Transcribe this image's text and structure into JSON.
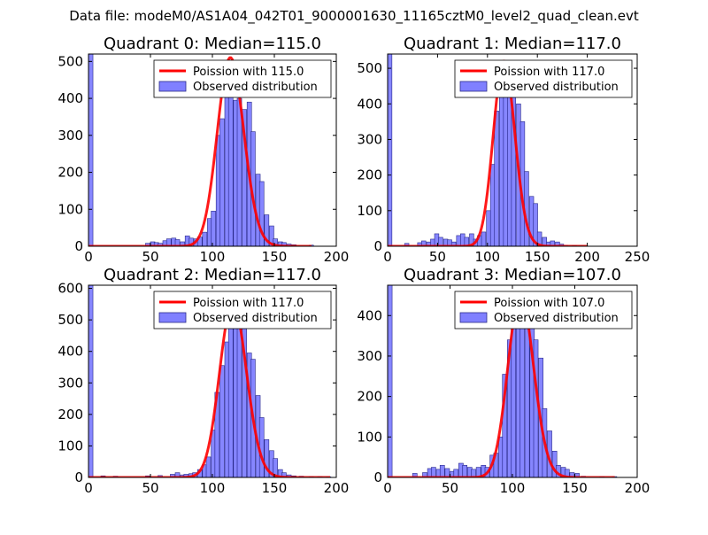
{
  "suptitle": "Data file: modeM0/AS1A04_042T01_9000001630_11165cztM0_level2_quad_clean.evt",
  "colors": {
    "hist_face": "#8080ff",
    "hist_edge": "#2a2a8a",
    "poisson_line": "#ff0000"
  },
  "chart_data": [
    {
      "type": "histogram+line",
      "title": "Quadrant 0: Median=115.0",
      "median": 115.0,
      "xlim": [
        0,
        200
      ],
      "ylim": [
        0,
        520
      ],
      "xticks": [
        0,
        50,
        100,
        150,
        200
      ],
      "yticks": [
        0,
        100,
        200,
        300,
        400,
        500
      ],
      "bin_width": 3.6,
      "bins": [
        [
          0,
          520
        ],
        [
          46,
          8
        ],
        [
          50,
          12
        ],
        [
          53,
          10
        ],
        [
          56,
          8
        ],
        [
          60,
          15
        ],
        [
          63,
          20
        ],
        [
          67,
          22
        ],
        [
          70,
          18
        ],
        [
          74,
          12
        ],
        [
          78,
          28
        ],
        [
          81,
          22
        ],
        [
          85,
          20
        ],
        [
          88,
          25
        ],
        [
          92,
          38
        ],
        [
          96,
          75
        ],
        [
          99,
          95
        ],
        [
          103,
          300
        ],
        [
          106,
          345
        ],
        [
          110,
          410
        ],
        [
          113,
          465
        ],
        [
          117,
          395
        ],
        [
          120,
          400
        ],
        [
          124,
          370
        ],
        [
          128,
          390
        ],
        [
          131,
          310
        ],
        [
          135,
          195
        ],
        [
          138,
          175
        ],
        [
          142,
          85
        ],
        [
          146,
          55
        ],
        [
          149,
          20
        ],
        [
          153,
          12
        ],
        [
          156,
          10
        ],
        [
          160,
          6
        ],
        [
          164,
          4
        ],
        [
          178,
          3
        ]
      ],
      "line_name": "Poission with 115.0",
      "line_lambda": 115.0,
      "line_peak": 510,
      "line_range": [
        0,
        180
      ],
      "legend": [
        "Poission with 115.0",
        "Observed distribution"
      ],
      "legend_loc": "upper right"
    },
    {
      "type": "histogram+line",
      "title": "Quadrant 1: Median=117.0",
      "median": 117.0,
      "xlim": [
        0,
        250
      ],
      "ylim": [
        0,
        540
      ],
      "xticks": [
        0,
        50,
        100,
        150,
        200,
        250
      ],
      "yticks": [
        0,
        100,
        200,
        300,
        400,
        500
      ],
      "bin_width": 4.3,
      "bins": [
        [
          0,
          540
        ],
        [
          17,
          8
        ],
        [
          30,
          10
        ],
        [
          34,
          15
        ],
        [
          39,
          12
        ],
        [
          43,
          20
        ],
        [
          47,
          35
        ],
        [
          51,
          25
        ],
        [
          56,
          20
        ],
        [
          60,
          18
        ],
        [
          64,
          12
        ],
        [
          69,
          30
        ],
        [
          73,
          35
        ],
        [
          77,
          25
        ],
        [
          82,
          35
        ],
        [
          86,
          20
        ],
        [
          90,
          30
        ],
        [
          94,
          40
        ],
        [
          99,
          100
        ],
        [
          103,
          230
        ],
        [
          107,
          380
        ],
        [
          112,
          435
        ],
        [
          116,
          470
        ],
        [
          120,
          450
        ],
        [
          124,
          440
        ],
        [
          129,
          400
        ],
        [
          133,
          350
        ],
        [
          137,
          210
        ],
        [
          142,
          140
        ],
        [
          146,
          120
        ],
        [
          150,
          40
        ],
        [
          155,
          25
        ],
        [
          159,
          12
        ],
        [
          163,
          15
        ],
        [
          168,
          12
        ],
        [
          172,
          6
        ],
        [
          176,
          3
        ],
        [
          185,
          2
        ]
      ],
      "line_name": "Poission with 117.0",
      "line_lambda": 117.0,
      "line_peak": 520,
      "line_range": [
        0,
        200
      ],
      "legend": [
        "Poission with 117.0",
        "Observed distribution"
      ],
      "legend_loc": "upper right"
    },
    {
      "type": "histogram+line",
      "title": "Quadrant 2: Median=117.0",
      "median": 117.0,
      "xlim": [
        0,
        200
      ],
      "ylim": [
        0,
        610
      ],
      "xticks": [
        0,
        50,
        100,
        150,
        200
      ],
      "yticks": [
        0,
        100,
        200,
        300,
        400,
        500,
        600
      ],
      "bin_width": 3.6,
      "bins": [
        [
          0,
          610
        ],
        [
          10,
          5
        ],
        [
          20,
          4
        ],
        [
          46,
          5
        ],
        [
          56,
          6
        ],
        [
          66,
          10
        ],
        [
          70,
          15
        ],
        [
          74,
          8
        ],
        [
          77,
          10
        ],
        [
          81,
          12
        ],
        [
          84,
          15
        ],
        [
          88,
          25
        ],
        [
          92,
          40
        ],
        [
          95,
          65
        ],
        [
          99,
          150
        ],
        [
          102,
          270
        ],
        [
          106,
          355
        ],
        [
          110,
          430
        ],
        [
          113,
          510
        ],
        [
          117,
          520
        ],
        [
          120,
          505
        ],
        [
          124,
          475
        ],
        [
          128,
          395
        ],
        [
          131,
          375
        ],
        [
          135,
          260
        ],
        [
          138,
          190
        ],
        [
          142,
          120
        ],
        [
          146,
          85
        ],
        [
          149,
          60
        ],
        [
          153,
          25
        ],
        [
          156,
          15
        ],
        [
          160,
          8
        ],
        [
          164,
          5
        ],
        [
          170,
          4
        ],
        [
          178,
          3
        ],
        [
          185,
          3
        ],
        [
          192,
          2
        ]
      ],
      "line_name": "Poission with 117.0",
      "line_lambda": 117.0,
      "line_peak": 555,
      "line_range": [
        0,
        195
      ],
      "legend": [
        "Poission with 117.0",
        "Observed distribution"
      ],
      "legend_loc": "upper right"
    },
    {
      "type": "histogram+line",
      "title": "Quadrant 3: Median=107.0",
      "median": 107.0,
      "xlim": [
        0,
        200
      ],
      "ylim": [
        0,
        475
      ],
      "xticks": [
        0,
        50,
        100,
        150,
        200
      ],
      "yticks": [
        0,
        100,
        200,
        300,
        400
      ],
      "bin_width": 3.6,
      "bins": [
        [
          0,
          475
        ],
        [
          20,
          10
        ],
        [
          28,
          12
        ],
        [
          32,
          22
        ],
        [
          35,
          25
        ],
        [
          39,
          20
        ],
        [
          42,
          30
        ],
        [
          46,
          22
        ],
        [
          50,
          15
        ],
        [
          53,
          20
        ],
        [
          57,
          35
        ],
        [
          60,
          30
        ],
        [
          64,
          25
        ],
        [
          67,
          20
        ],
        [
          71,
          25
        ],
        [
          75,
          30
        ],
        [
          78,
          25
        ],
        [
          82,
          55
        ],
        [
          85,
          60
        ],
        [
          89,
          100
        ],
        [
          92,
          255
        ],
        [
          96,
          340
        ],
        [
          99,
          390
        ],
        [
          103,
          440
        ],
        [
          106,
          455
        ],
        [
          110,
          425
        ],
        [
          114,
          405
        ],
        [
          117,
          340
        ],
        [
          121,
          295
        ],
        [
          124,
          170
        ],
        [
          128,
          115
        ],
        [
          132,
          65
        ],
        [
          135,
          30
        ],
        [
          139,
          25
        ],
        [
          142,
          20
        ],
        [
          146,
          12
        ],
        [
          150,
          10
        ],
        [
          155,
          3
        ],
        [
          170,
          2
        ],
        [
          180,
          2
        ]
      ],
      "line_name": "Poission with 107.0",
      "line_lambda": 107.0,
      "line_peak": 450,
      "line_range": [
        0,
        182
      ],
      "legend": [
        "Poission with 107.0",
        "Observed distribution"
      ],
      "legend_loc": "upper right"
    }
  ]
}
